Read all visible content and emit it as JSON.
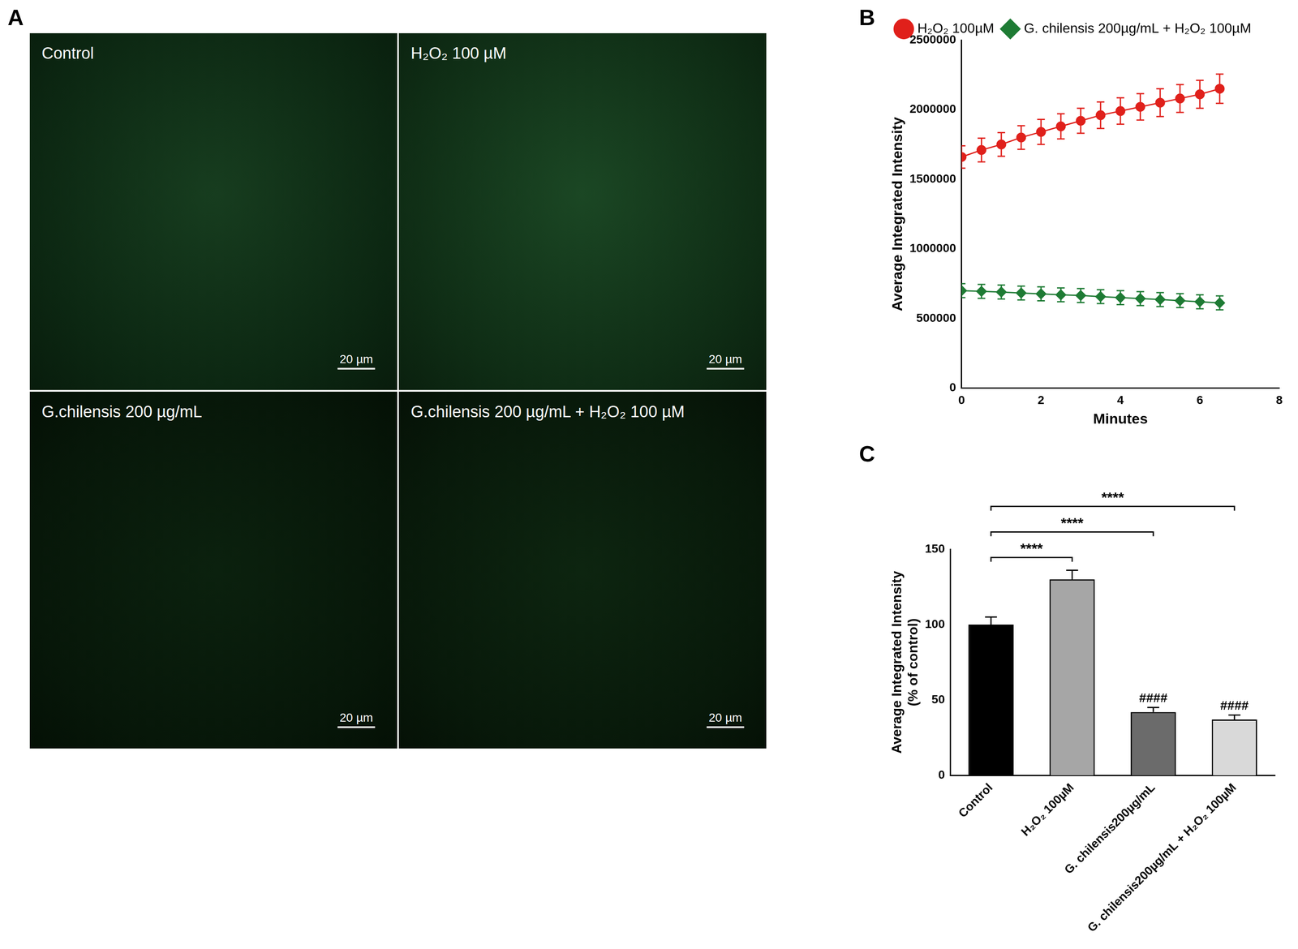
{
  "image_panel": {
    "panel": "A",
    "images": [
      {
        "label": "Control",
        "scale_bar": "20 µm"
      },
      {
        "label": "H₂O₂ 100 µM",
        "scale_bar": "20 µm"
      },
      {
        "label": "G.chilensis 200 µg/mL",
        "scale_bar": "20 µm"
      },
      {
        "label": "G.chilensis 200 µg/mL + H₂O₂ 100 µM",
        "scale_bar": "20 µm"
      }
    ]
  },
  "chart_data": [
    {
      "panel": "B",
      "type": "line",
      "x_label": "Minutes",
      "y_label": "Average Integrated Intensity",
      "x": [
        0,
        0.5,
        1,
        1.5,
        2,
        2.5,
        3,
        3.5,
        4,
        4.5,
        5,
        5.5,
        6,
        6.5
      ],
      "xlim": [
        0,
        8
      ],
      "xticks": [
        0,
        2,
        4,
        6,
        8
      ],
      "ylim": [
        0,
        2500000
      ],
      "yticks": [
        0,
        500000,
        1000000,
        1500000,
        2000000,
        2500000
      ],
      "grid": false,
      "legend": "top",
      "series": [
        {
          "name": "H₂O₂ 100µM",
          "color": "#e0201b",
          "marker": "circle",
          "values": [
            1660000,
            1710000,
            1750000,
            1800000,
            1840000,
            1880000,
            1920000,
            1960000,
            1990000,
            2020000,
            2050000,
            2080000,
            2110000,
            2150000
          ],
          "errors": [
            80000,
            85000,
            85000,
            85000,
            90000,
            90000,
            90000,
            95000,
            95000,
            95000,
            100000,
            100000,
            100000,
            105000
          ]
        },
        {
          "name": "G. chilensis 200µg/mL + H₂O₂ 100µM",
          "color": "#1e7b34",
          "marker": "diamond",
          "values": [
            700000,
            695000,
            690000,
            683000,
            677000,
            670000,
            665000,
            657000,
            650000,
            643000,
            636000,
            628000,
            620000,
            612000
          ],
          "errors": [
            50000,
            50000,
            50000,
            50000,
            50000,
            50000,
            50000,
            50000,
            50000,
            50000,
            50000,
            50000,
            50000,
            50000
          ]
        }
      ]
    },
    {
      "panel": "C",
      "type": "bar",
      "y_label": "Average Integrated Intensity\n(% of control)",
      "categories": [
        "Control",
        "H₂O₂ 100µM",
        "G. chilensis200µg/mL",
        "G. chilensis200µg/mL + H₂O₂ 100µM"
      ],
      "values": [
        100,
        130,
        42,
        37
      ],
      "errors": [
        5,
        6,
        3,
        3
      ],
      "colors": [
        "#000000",
        "#a6a6a6",
        "#6b6b6b",
        "#d9d9d9"
      ],
      "ylim": [
        0,
        150
      ],
      "yticks": [
        0,
        50,
        100,
        150
      ],
      "grid": false,
      "comparisons": [
        {
          "from": "Control",
          "to": "H₂O₂ 100µM",
          "label": "****"
        },
        {
          "from": "Control",
          "to": "G. chilensis200µg/mL",
          "label": "****"
        },
        {
          "from": "Control",
          "to": "G. chilensis200µg/mL + H₂O₂ 100µM",
          "label": "****"
        }
      ],
      "marks": [
        {
          "category": "G. chilensis200µg/mL",
          "label": "####"
        },
        {
          "category": "G. chilensis200µg/mL + H₂O₂ 100µM",
          "label": "####"
        }
      ]
    }
  ]
}
